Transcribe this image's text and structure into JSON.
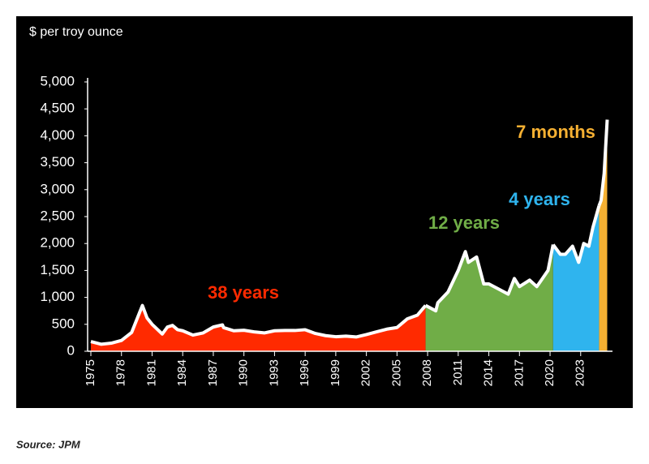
{
  "chart_data": {
    "type": "area",
    "subtitle": "$ per troy ounce",
    "source": "Source: JPM",
    "xlim": [
      1975,
      2025.8
    ],
    "xticks": [
      1975,
      1978,
      1981,
      1984,
      1987,
      1990,
      1993,
      1996,
      1999,
      2002,
      2005,
      2008,
      2011,
      2014,
      2017,
      2020,
      2023
    ],
    "ylim": [
      0,
      5000
    ],
    "yticks": [
      0,
      {
        "value": 500,
        "label": "500"
      },
      {
        "value": 1000,
        "label": "1,000"
      },
      {
        "value": 1500,
        "label": "1,500"
      },
      {
        "value": 2000,
        "label": "2,000"
      },
      {
        "value": 2500,
        "label": "2,500"
      },
      {
        "value": 3000,
        "label": "3,000"
      },
      {
        "value": 3500,
        "label": "3,500"
      },
      {
        "value": 4000,
        "label": "4,000"
      },
      {
        "value": 4500,
        "label": "4,500"
      },
      {
        "value": 5000,
        "label": "5,000"
      }
    ],
    "line_color": "#ffffff",
    "series": [
      {
        "name": "38 years",
        "color": "#ff2a00",
        "x": [
          1975,
          1976,
          1977,
          1978,
          1979,
          1980.05,
          1980.5,
          1981,
          1982,
          1982.5,
          1983,
          1983.5,
          1984,
          1985,
          1986,
          1987,
          1987.9,
          1988,
          1989,
          1990,
          1991,
          1992,
          1993,
          1994,
          1995,
          1996,
          1997,
          1998,
          1999,
          2000,
          2001,
          2002,
          2003,
          2004,
          2005,
          2006,
          2007,
          2007.8
        ],
        "values": [
          180,
          130,
          150,
          200,
          350,
          850,
          620,
          500,
          320,
          450,
          480,
          400,
          380,
          300,
          340,
          450,
          490,
          440,
          380,
          390,
          360,
          340,
          380,
          385,
          385,
          400,
          330,
          290,
          270,
          280,
          265,
          310,
          360,
          410,
          440,
          600,
          670,
          850
        ]
      },
      {
        "name": "12 years",
        "color": "#70ad47",
        "x": [
          2007.8,
          2008.8,
          2009,
          2010,
          2011,
          2011.7,
          2012,
          2012.8,
          2013.5,
          2014,
          2015,
          2015.9,
          2016.5,
          2017,
          2018,
          2018.7,
          2019,
          2019.8,
          2020.3
        ],
        "values": [
          850,
          750,
          900,
          1100,
          1500,
          1850,
          1650,
          1750,
          1250,
          1250,
          1150,
          1060,
          1350,
          1200,
          1320,
          1200,
          1280,
          1500,
          1980
        ]
      },
      {
        "name": "4 years",
        "color": "#2fb4ee",
        "x": [
          2020.3,
          2021,
          2021.5,
          2022.2,
          2022.8,
          2023.3,
          2023.8,
          2024.2,
          2024.8
        ],
        "values": [
          1980,
          1800,
          1800,
          1950,
          1650,
          2000,
          1950,
          2300,
          2700
        ]
      },
      {
        "name": "7 months",
        "color": "#f5b032",
        "x": [
          2024.8,
          2025,
          2025.3,
          2025.6
        ],
        "values": [
          2700,
          2800,
          3300,
          4300
        ]
      }
    ]
  }
}
